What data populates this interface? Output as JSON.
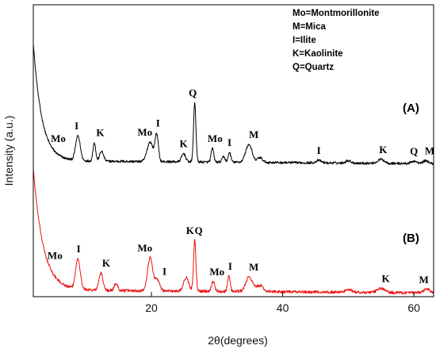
{
  "chart_data": {
    "type": "line",
    "title": "",
    "xlabel": "2θ(degrees)",
    "ylabel": "Intensity (a.u.)",
    "xlim": [
      2,
      63
    ],
    "xticks": [
      20,
      40,
      60
    ],
    "yticks_shown": false,
    "grid": false,
    "legend": {
      "placement": "top-right",
      "entries": [
        "Mo=Montmorillonite",
        "M=Mica",
        "I=Ilite",
        "K=Kaolinite",
        "Q=Quartz"
      ]
    },
    "series": [
      {
        "name": "(A)",
        "color": "#000000",
        "baseline": 2.0,
        "decay": {
          "amp": 24,
          "tau": 1.3,
          "x0": 2
        },
        "slope": -0.01,
        "noise": 0.5,
        "peaks": [
          [
            8.8,
            5.0,
            0.35
          ],
          [
            11.3,
            3.8,
            0.2
          ],
          [
            12.4,
            2.0,
            0.3
          ],
          [
            19.8,
            4.0,
            0.45
          ],
          [
            20.8,
            5.5,
            0.25
          ],
          [
            24.9,
            1.7,
            0.3
          ],
          [
            26.6,
            12.0,
            0.18
          ],
          [
            29.3,
            2.8,
            0.2
          ],
          [
            31.0,
            1.2,
            0.2
          ],
          [
            31.9,
            2.0,
            0.2
          ],
          [
            34.5,
            1.5,
            0.4
          ],
          [
            35.0,
            2.8,
            0.4
          ],
          [
            36.5,
            1.0,
            0.4
          ],
          [
            45.5,
            0.5,
            0.4
          ],
          [
            50.0,
            0.5,
            0.4
          ],
          [
            55.0,
            0.8,
            0.5
          ],
          [
            60.0,
            0.5,
            0.4
          ],
          [
            61.8,
            0.6,
            0.4
          ]
        ]
      },
      {
        "name": "(B)",
        "color": "#ee1111",
        "baseline": 1.5,
        "decay": {
          "amp": 24,
          "tau": 1.5,
          "x0": 2
        },
        "slope": -0.01,
        "noise": 0.55,
        "peaks": [
          [
            8.8,
            6.0,
            0.35
          ],
          [
            12.3,
            3.4,
            0.3
          ],
          [
            14.6,
            1.4,
            0.25
          ],
          [
            19.8,
            6.5,
            0.4
          ],
          [
            20.9,
            2.2,
            0.35
          ],
          [
            25.3,
            2.6,
            0.4
          ],
          [
            26.6,
            10.0,
            0.18
          ],
          [
            29.4,
            1.9,
            0.25
          ],
          [
            31.8,
            3.0,
            0.2
          ],
          [
            34.9,
            2.9,
            0.5
          ],
          [
            36.5,
            1.2,
            0.5
          ],
          [
            50.0,
            0.5,
            0.5
          ],
          [
            55.0,
            0.8,
            0.6
          ],
          [
            62.0,
            0.7,
            0.5
          ]
        ]
      }
    ],
    "panel_labels": [
      "(A)",
      "(B)"
    ],
    "annotations_A": [
      {
        "text": "Mo",
        "x": 5.8
      },
      {
        "text": "I",
        "x": 8.6
      },
      {
        "text": "K",
        "x": 12.2
      },
      {
        "text": "Mo",
        "x": 19.0
      },
      {
        "text": "I",
        "x": 21.0
      },
      {
        "text": "K",
        "x": 24.9
      },
      {
        "text": "Q",
        "x": 26.3
      },
      {
        "text": "Mo",
        "x": 29.7
      },
      {
        "text": "I",
        "x": 31.9
      },
      {
        "text": "M",
        "x": 35.6
      },
      {
        "text": "I",
        "x": 45.5
      },
      {
        "text": "K",
        "x": 55.3
      },
      {
        "text": "Q",
        "x": 60.0
      },
      {
        "text": "M",
        "x": 62.4
      }
    ],
    "annotations_B": [
      {
        "text": "Mo",
        "x": 5.3
      },
      {
        "text": "I",
        "x": 8.9
      },
      {
        "text": "K",
        "x": 13.1
      },
      {
        "text": "Mo",
        "x": 19.0
      },
      {
        "text": "I",
        "x": 22.0
      },
      {
        "text": "K",
        "x": 25.9
      },
      {
        "text": "Q",
        "x": 27.2
      },
      {
        "text": "Mo",
        "x": 30.0
      },
      {
        "text": "I",
        "x": 32.0
      },
      {
        "text": "M",
        "x": 35.6
      },
      {
        "text": "K",
        "x": 55.7
      },
      {
        "text": "M",
        "x": 61.5
      }
    ]
  }
}
